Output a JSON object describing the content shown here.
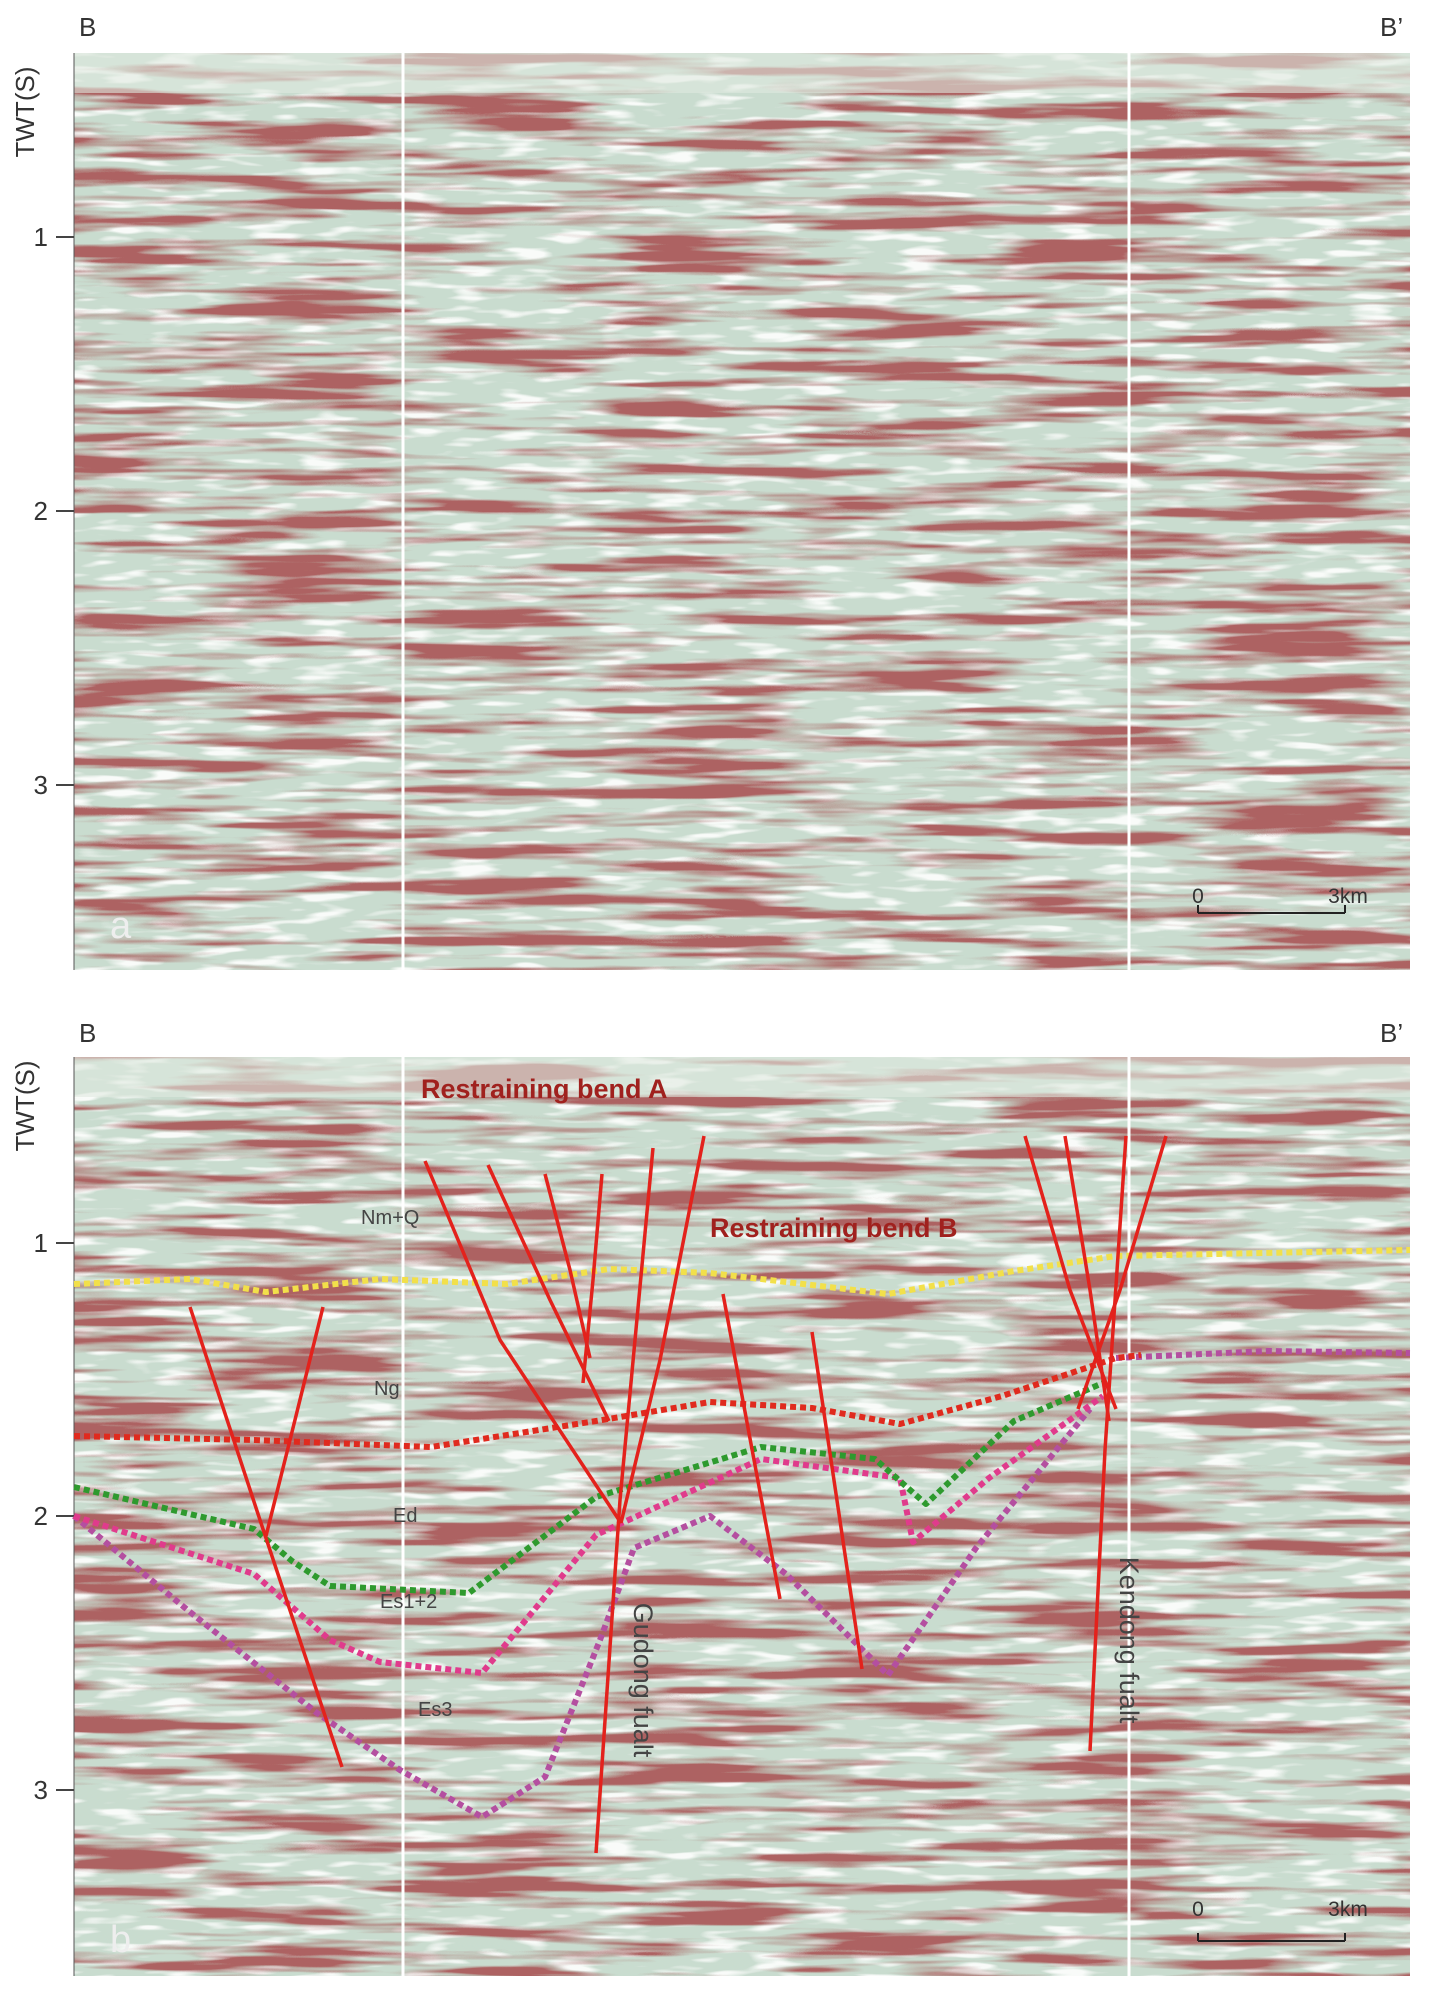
{
  "panel_a": {
    "left_label": "B",
    "right_label": "B’",
    "axis_title": "TWT(S)",
    "ticks": [
      "1",
      "2",
      "3"
    ],
    "label": "a",
    "scale": [
      "0",
      "3km"
    ]
  },
  "panel_b": {
    "left_label": "B",
    "right_label": "B’",
    "axis_title": "TWT(S)",
    "ticks": [
      "1",
      "2",
      "3"
    ],
    "label": "b",
    "scale": [
      "0",
      "3km"
    ],
    "annotations": {
      "bend_a": "Restraining bend A",
      "bend_b": "Restraining bend B",
      "nmq": "Nm+Q",
      "ng": "Ng",
      "ed": "Ed",
      "es12": "Es1+2",
      "es3": "Es3",
      "gudong": "Gudong fualt",
      "kendong": "Kendong fualt"
    }
  }
}
